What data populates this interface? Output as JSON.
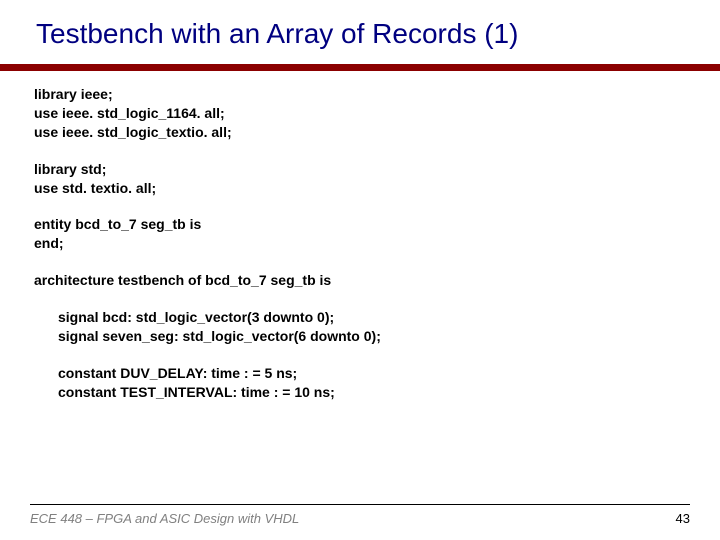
{
  "title": "Testbench with an Array of Records (1)",
  "colors": {
    "title": "#000080",
    "divider": "#8b0000",
    "code_text": "#000000",
    "footer_text": "#808080",
    "background": "#ffffff"
  },
  "fontsize": {
    "title": 28,
    "code": 14,
    "footer": 13
  },
  "code": {
    "p1": {
      "l1": "library ieee;",
      "l2": "use ieee. std_logic_1164. all;",
      "l3": "use ieee. std_logic_textio. all;"
    },
    "p2": {
      "l1": "library std;",
      "l2": "use std. textio. all;"
    },
    "p3": {
      "l1": "entity bcd_to_7 seg_tb is",
      "l2": "end;"
    },
    "p4": {
      "l1": "architecture testbench of bcd_to_7 seg_tb is"
    },
    "p5": {
      "l1": "signal bcd: std_logic_vector(3 downto 0);",
      "l2": "signal seven_seg: std_logic_vector(6 downto 0);"
    },
    "p6": {
      "l1": "constant DUV_DELAY: time : = 5 ns;",
      "l2": "constant TEST_INTERVAL: time : = 10 ns;"
    }
  },
  "footer": {
    "text": "ECE 448 – FPGA and ASIC Design with VHDL",
    "page": "43"
  }
}
